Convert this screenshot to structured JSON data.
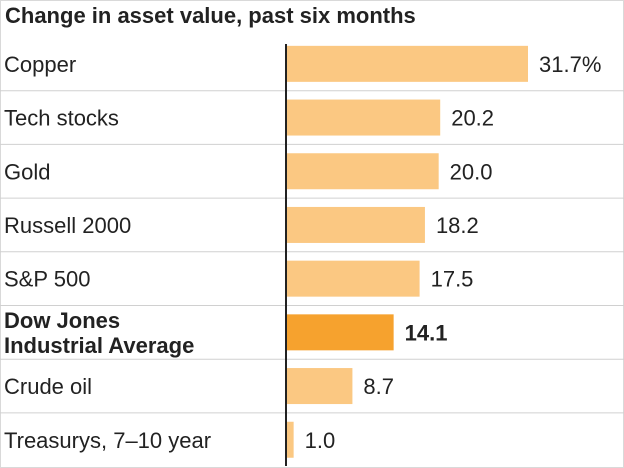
{
  "chart_data": {
    "type": "bar",
    "orientation": "horizontal",
    "title": "Change in asset value, past six months",
    "categories": [
      [
        "Copper"
      ],
      [
        "Tech stocks"
      ],
      [
        "Gold"
      ],
      [
        "Russell 2000"
      ],
      [
        "S&P 500"
      ],
      [
        "Dow Jones",
        "Industrial Average"
      ],
      [
        "Crude oil"
      ],
      [
        "Treasurys, 7–10 year"
      ]
    ],
    "values": [
      31.7,
      20.2,
      20.0,
      18.2,
      17.5,
      14.1,
      8.7,
      1.0
    ],
    "value_labels": [
      "31.7%",
      "20.2",
      "20.0",
      "18.2",
      "17.5",
      "14.1",
      "8.7",
      "1.0"
    ],
    "highlight_index": 5,
    "xlim": [
      0,
      31.7
    ],
    "colors": {
      "bar": "#fbc882",
      "highlight_bar": "#f6a22e",
      "axis": "#222222",
      "separator": "#d0d0d0"
    }
  }
}
